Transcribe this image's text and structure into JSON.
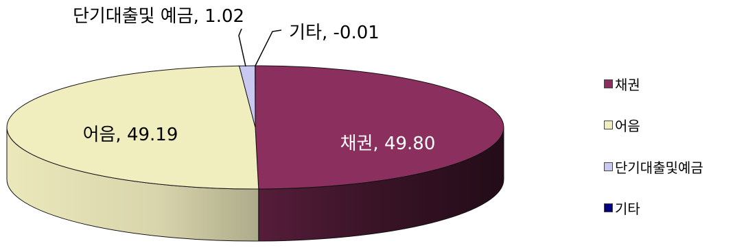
{
  "chart_data": {
    "type": "pie",
    "style": "3d",
    "categories": [
      "채권",
      "어음",
      "단기대출및예금",
      "기타"
    ],
    "values": [
      49.8,
      49.19,
      1.02,
      -0.01
    ],
    "data_labels": [
      "채권, 49.80",
      "어음, 49.19",
      "단기대출및 예금, 1.02",
      "기타, -0.01"
    ],
    "colors": [
      "#8b2f5e",
      "#f0edbf",
      "#c8c8f0",
      "#000080"
    ],
    "legend": {
      "position": "right",
      "entries": [
        "채권",
        "어음",
        "단기대출및예금",
        "기타"
      ]
    }
  }
}
